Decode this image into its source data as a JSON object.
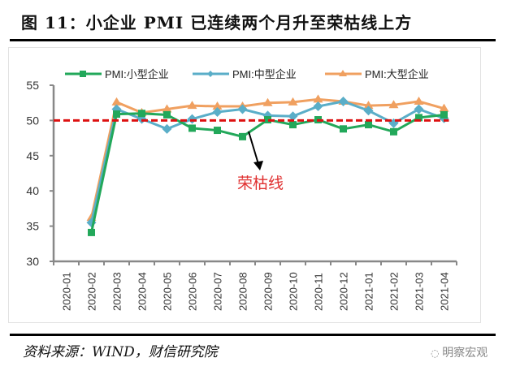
{
  "header": {
    "title": "图 11：小企业 PMI 已连续两个月升至荣枯线上方"
  },
  "footer": {
    "source": "资料来源：WIND，财信研究院",
    "watermark": "明察宏观"
  },
  "annotation": {
    "label": "荣枯线",
    "color": "#e03030"
  },
  "colors": {
    "small": "#22a85a",
    "medium": "#5aaec8",
    "large": "#f0a060",
    "threshold": "#dd1111"
  },
  "chart_data": {
    "type": "line",
    "title": "小企业 PMI 已连续两个月升至荣枯线上方",
    "xlabel": "",
    "ylabel": "",
    "ylim": [
      30,
      55
    ],
    "yticks": [
      30,
      35,
      40,
      45,
      50,
      55
    ],
    "grid": false,
    "legend_position": "top",
    "categories": [
      "2020-01",
      "2020-02",
      "2020-03",
      "2020-04",
      "2020-05",
      "2020-06",
      "2020-07",
      "2020-08",
      "2020-09",
      "2020-10",
      "2020-11",
      "2020-12",
      "2021-01",
      "2021-02",
      "2021-03",
      "2021-04"
    ],
    "series": [
      {
        "name": "PMI:小型企业",
        "marker": "square",
        "values": [
          null,
          34.1,
          50.9,
          51.0,
          50.8,
          48.9,
          48.6,
          47.7,
          50.1,
          49.4,
          50.1,
          48.8,
          49.4,
          48.4,
          50.4,
          50.8
        ]
      },
      {
        "name": "PMI:中型企业",
        "marker": "diamond",
        "values": [
          null,
          35.5,
          51.6,
          50.2,
          48.8,
          50.2,
          51.2,
          51.6,
          50.7,
          50.6,
          52.0,
          52.7,
          51.4,
          49.6,
          51.6,
          50.3
        ]
      },
      {
        "name": "PMI:大型企业",
        "marker": "triangle",
        "values": [
          null,
          36.2,
          52.6,
          51.1,
          51.6,
          52.1,
          52.0,
          52.0,
          52.5,
          52.6,
          53.0,
          52.7,
          52.1,
          52.2,
          52.7,
          51.7
        ]
      }
    ],
    "reference_line": {
      "y": 50,
      "style": "dashed",
      "label": "荣枯线"
    }
  }
}
